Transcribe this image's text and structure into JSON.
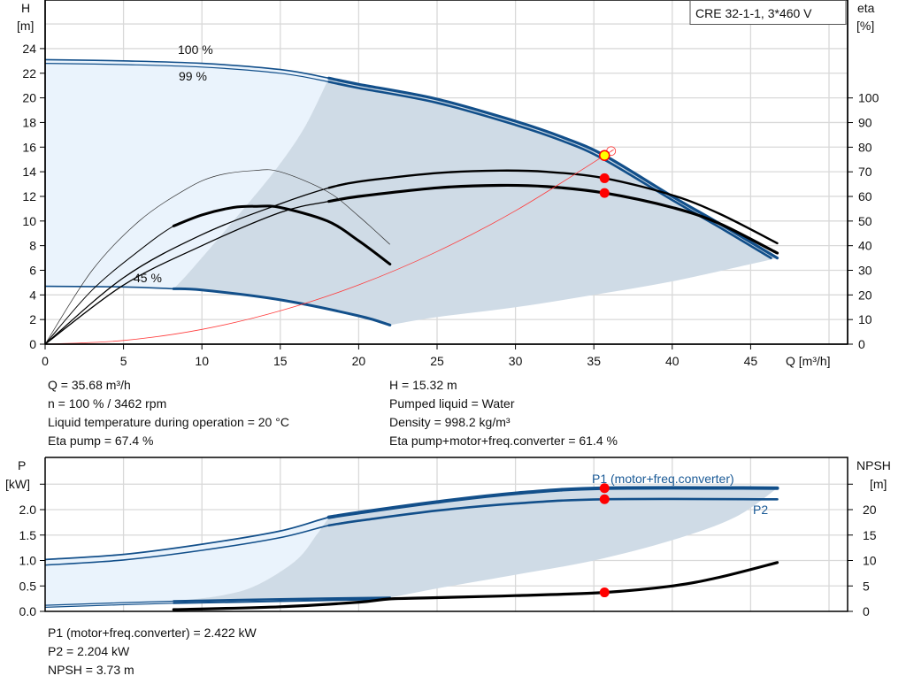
{
  "legend_box": "CRE 32-1-1, 3*460 V",
  "colors": {
    "curve_blue": "#124f8a",
    "light_fill": "#eaf3fc",
    "range_fill": "#cfdbe6",
    "grid": "#d9d9d9",
    "duty_point": "#ff0000",
    "operating_marker": "#ffff00",
    "system_curve": "#ff3b3b",
    "p1_label": "#1a5a96"
  },
  "info_top": {
    "left": [
      "Q = 35.68 m³/h",
      "n = 100 % / 3462 rpm",
      "Liquid temperature during operation = 20 °C",
      "Eta pump = 67.4 %"
    ],
    "right": [
      "H = 15.32 m",
      "Pumped liquid = Water",
      "Density = 998.2 kg/m³",
      "Eta pump+motor+freq.converter = 61.4 %"
    ]
  },
  "info_bottom": [
    "P1 (motor+freq.converter) = 2.422 kW",
    "P2 = 2.204 kW",
    "NPSH = 3.73 m"
  ],
  "chart_data": [
    {
      "type": "line",
      "title": "CRE 32-1-1, 3*460 V",
      "xlabel": "Q [m³/h]",
      "ylabel_left": "H",
      "ylabel_left_unit": "[m]",
      "ylabel_right": "eta",
      "ylabel_right_unit": "[%]",
      "xlim": [
        0,
        51
      ],
      "ylim_left": [
        0,
        28
      ],
      "ylim_right": [
        0,
        140
      ],
      "x_ticks": [
        0,
        5,
        10,
        15,
        20,
        25,
        30,
        35,
        40,
        45
      ],
      "y_left_ticks": [
        0,
        2,
        4,
        6,
        8,
        10,
        12,
        14,
        16,
        18,
        20,
        22,
        24
      ],
      "y_right_ticks": [
        0,
        10,
        20,
        30,
        40,
        50,
        60,
        70,
        80,
        90,
        100
      ],
      "grid": true,
      "curve_labels": [
        "100 %",
        "99 %",
        "45 %"
      ],
      "series": [
        {
          "name": "100 %",
          "axis": "H",
          "thick_from": 18.1,
          "points": [
            [
              0,
              23.1
            ],
            [
              5,
              23.0
            ],
            [
              10,
              22.8
            ],
            [
              15,
              22.3
            ],
            [
              18.1,
              21.6
            ],
            [
              20,
              21.1
            ],
            [
              25,
              19.9
            ],
            [
              30,
              18.1
            ],
            [
              33,
              16.8
            ],
            [
              35.68,
              15.32
            ],
            [
              40,
              12.0
            ],
            [
              43,
              9.8
            ],
            [
              46.7,
              7.0
            ]
          ]
        },
        {
          "name": "99 %",
          "axis": "H",
          "thick_from": 18.1,
          "points": [
            [
              0,
              22.8
            ],
            [
              5,
              22.7
            ],
            [
              10,
              22.5
            ],
            [
              15,
              22.0
            ],
            [
              18.1,
              21.3
            ],
            [
              20,
              20.8
            ],
            [
              25,
              19.6
            ],
            [
              30,
              17.8
            ],
            [
              33,
              16.5
            ],
            [
              35.5,
              15.1
            ],
            [
              40,
              11.7
            ],
            [
              43,
              9.5
            ],
            [
              46.3,
              7.0
            ]
          ]
        },
        {
          "name": "45 %",
          "axis": "H",
          "thick_from": 8.2,
          "points": [
            [
              0,
              4.7
            ],
            [
              5,
              4.65
            ],
            [
              8.2,
              4.5
            ],
            [
              10,
              4.4
            ],
            [
              15,
              3.6
            ],
            [
              20,
              2.3
            ],
            [
              22,
              1.55
            ]
          ]
        },
        {
          "name": "Eta pump",
          "axis": "eta",
          "thick_from": 18.1,
          "points": [
            [
              0,
              0
            ],
            [
              5,
              27
            ],
            [
              10,
              44.5
            ],
            [
              15,
              57
            ],
            [
              18.1,
              63.5
            ],
            [
              20,
              66
            ],
            [
              25,
              69.5
            ],
            [
              29,
              70.5
            ],
            [
              32,
              70
            ],
            [
              35.68,
              67.4
            ],
            [
              40,
              60.5
            ],
            [
              43,
              53
            ],
            [
              46.7,
              41
            ]
          ]
        },
        {
          "name": "Eta pump+motor+freq.converter",
          "axis": "eta",
          "thick_from": 18.1,
          "points": [
            [
              0,
              0
            ],
            [
              5,
              24
            ],
            [
              10,
              40
            ],
            [
              15,
              53.5
            ],
            [
              18.1,
              58
            ],
            [
              20,
              60
            ],
            [
              25,
              63.5
            ],
            [
              29,
              64.5
            ],
            [
              32,
              64
            ],
            [
              35.68,
              61.4
            ],
            [
              40,
              55.5
            ],
            [
              43,
              49
            ],
            [
              46.7,
              37
            ]
          ]
        },
        {
          "name": "Eta pump 45 %",
          "axis": "eta",
          "thick_from": 99,
          "points": [
            [
              0,
              0
            ],
            [
              3,
              30
            ],
            [
              6,
              50
            ],
            [
              9,
              63
            ],
            [
              11,
              68.5
            ],
            [
              13.3,
              70.5
            ],
            [
              15,
              70
            ],
            [
              18,
              62
            ],
            [
              20,
              52
            ],
            [
              22,
              40.5
            ]
          ]
        },
        {
          "name": "Eta total 45 %",
          "axis": "eta",
          "thick_from": 8.2,
          "points": [
            [
              0,
              0
            ],
            [
              3,
              22
            ],
            [
              6,
              38
            ],
            [
              8.2,
              48
            ],
            [
              10,
              52.5
            ],
            [
              12,
              55.5
            ],
            [
              13.5,
              56
            ],
            [
              15,
              55.5
            ],
            [
              18,
              50
            ],
            [
              20,
              42
            ],
            [
              22,
              32.5
            ]
          ]
        },
        {
          "name": "System curve",
          "axis": "H",
          "points": [
            [
              0,
              0
            ],
            [
              5,
              0.3
            ],
            [
              10,
              1.2
            ],
            [
              15,
              2.71
            ],
            [
              20,
              4.81
            ],
            [
              25,
              7.52
            ],
            [
              30,
              10.83
            ],
            [
              35.68,
              15.32
            ],
            [
              36.1,
              15.68
            ]
          ]
        }
      ],
      "operating_range_lower_edge": [
        [
          22,
          1.55
        ],
        [
          25,
          2.2
        ],
        [
          30,
          3.0
        ],
        [
          35,
          4.0
        ],
        [
          40,
          5.1
        ],
        [
          45,
          6.5
        ],
        [
          46.7,
          7.0
        ]
      ],
      "operating_range_left_edge": [
        [
          8.2,
          4.5
        ],
        [
          9.3,
          6
        ],
        [
          12,
          10
        ],
        [
          14.6,
          14
        ],
        [
          16.5,
          17.5
        ],
        [
          18.1,
          21.6
        ]
      ],
      "duty_point": {
        "Q": 35.68,
        "H": 15.32,
        "eta_pump": 67.4,
        "eta_total": 61.4
      }
    },
    {
      "type": "line",
      "ylabel_left": "P",
      "ylabel_left_unit": "[kW]",
      "ylabel_right": "NPSH",
      "ylabel_right_unit": "[m]",
      "xlim": [
        0,
        51
      ],
      "ylim_left": [
        0,
        3.02
      ],
      "ylim_right": [
        0,
        30.2
      ],
      "y_left_ticks": [
        "0.0",
        "0.5",
        "1.0",
        "1.5",
        "2.0"
      ],
      "y_right_ticks": [
        0,
        5,
        10,
        15,
        20
      ],
      "grid": true,
      "curve_labels": [
        "P1 (motor+freq.converter)",
        "P2"
      ],
      "series": [
        {
          "name": "P1 (motor+freq.converter)",
          "axis": "P",
          "thick_from": 18.1,
          "points": [
            [
              0,
              1.02
            ],
            [
              5,
              1.12
            ],
            [
              10,
              1.32
            ],
            [
              15,
              1.58
            ],
            [
              18.1,
              1.85
            ],
            [
              20,
              1.94
            ],
            [
              25,
              2.15
            ],
            [
              30,
              2.32
            ],
            [
              35.68,
              2.422
            ],
            [
              46.7,
              2.422
            ]
          ]
        },
        {
          "name": "P2",
          "axis": "P",
          "thick_from": 18.1,
          "points": [
            [
              0,
              0.91
            ],
            [
              5,
              1.01
            ],
            [
              10,
              1.2
            ],
            [
              15,
              1.45
            ],
            [
              18.1,
              1.69
            ],
            [
              20,
              1.78
            ],
            [
              25,
              1.98
            ],
            [
              30,
              2.12
            ],
            [
              35.68,
              2.204
            ],
            [
              46.7,
              2.204
            ]
          ]
        },
        {
          "name": "P1 45 %",
          "axis": "P",
          "thick_from": 8.2,
          "points": [
            [
              0,
              0.12
            ],
            [
              8.2,
              0.2
            ],
            [
              15,
              0.24
            ],
            [
              22,
              0.27
            ]
          ]
        },
        {
          "name": "P2 45 %",
          "axis": "P",
          "thick_from": 8.2,
          "points": [
            [
              0,
              0.08
            ],
            [
              8.2,
              0.16
            ],
            [
              15,
              0.2
            ],
            [
              22,
              0.24
            ]
          ]
        },
        {
          "name": "NPSH",
          "axis": "NPSH",
          "thick_from": 8.2,
          "points": [
            [
              8.2,
              0.35
            ],
            [
              15,
              0.9
            ],
            [
              20,
              1.8
            ],
            [
              22,
              2.45
            ],
            [
              25,
              2.7
            ],
            [
              30,
              3.1
            ],
            [
              35.68,
              3.73
            ],
            [
              40,
              5.0
            ],
            [
              43,
              6.7
            ],
            [
              46.7,
              9.6
            ]
          ]
        }
      ],
      "operating_range_lower_edge": [
        [
          22,
          0.27
        ],
        [
          25,
          0.45
        ],
        [
          30,
          0.72
        ],
        [
          35,
          1.0
        ],
        [
          40,
          1.4
        ],
        [
          44,
          1.85
        ],
        [
          46.7,
          2.422
        ]
      ],
      "operating_range_left_edge": [
        [
          8.2,
          0.2
        ],
        [
          11,
          0.3
        ],
        [
          13.4,
          0.5
        ],
        [
          16,
          1.0
        ],
        [
          17.3,
          1.5
        ],
        [
          18.1,
          1.85
        ]
      ],
      "duty_point": {
        "Q": 35.68,
        "P1": 2.422,
        "P2": 2.204,
        "NPSH": 3.73
      }
    }
  ]
}
